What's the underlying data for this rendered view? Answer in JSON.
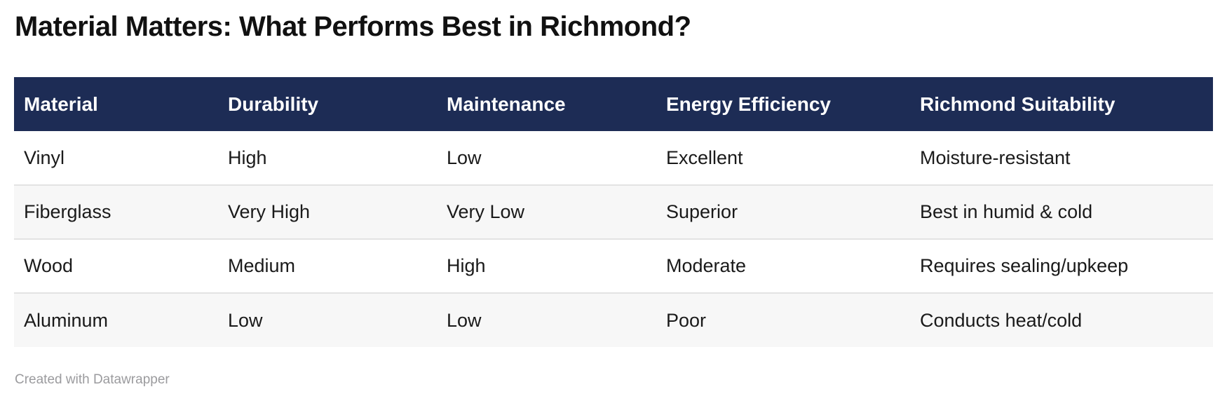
{
  "title": "Material Matters: What Performs Best in Richmond?",
  "footer": {
    "credit": "Created with Datawrapper"
  },
  "colors": {
    "header_bg": "#1d2c55",
    "header_text": "#ffffff",
    "stripe_bg": "#f7f7f7",
    "row_border": "#e3e3e3",
    "body_text": "#1a1a1a",
    "credit_text": "#9b9b9e"
  },
  "chart_data": {
    "type": "table",
    "title": "Material Matters: What Performs Best in Richmond?",
    "columns": [
      "Material",
      "Durability",
      "Maintenance",
      "Energy Efficiency",
      "Richmond Suitability"
    ],
    "rows": [
      [
        "Vinyl",
        "High",
        "Low",
        "Excellent",
        "Moisture-resistant"
      ],
      [
        "Fiberglass",
        "Very High",
        "Very Low",
        "Superior",
        "Best in humid & cold"
      ],
      [
        "Wood",
        "Medium",
        "High",
        "Moderate",
        "Requires sealing/upkeep"
      ],
      [
        "Aluminum",
        "Low",
        "Low",
        "Poor",
        "Conducts heat/cold"
      ]
    ],
    "layout": {
      "striped_rows": [
        1,
        3
      ],
      "header_style": "dark-navy",
      "grid": "horizontal-only"
    }
  }
}
